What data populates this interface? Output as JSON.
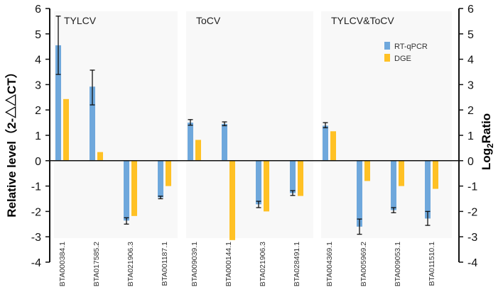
{
  "chart_data": {
    "type": "bar",
    "ylabel_left": "Relative level（2-△△CT）",
    "ylabel_right": "Log",
    "ylabel_right_sub": "2",
    "ylabel_right_tail": "Ratio",
    "ylim": [
      -4,
      6
    ],
    "yticks": [
      "-4",
      "-3",
      "-2",
      "-1",
      "0",
      "1",
      "2",
      "3",
      "4",
      "5",
      "6"
    ],
    "legend": {
      "placement": "top-right",
      "entries": [
        "RT-qPCR",
        "DGE"
      ]
    },
    "colors": {
      "RT-qPCR": "#6fa8dc",
      "DGE": "#ffc125"
    },
    "panels": [
      {
        "title": "TYLCV",
        "categories": [
          "BTA000384.1",
          "BTA017585.2",
          "BTA021906.3",
          "BTA001187.1"
        ],
        "rtqpcr": [
          4.55,
          2.92,
          -2.36,
          -1.45
        ],
        "rtqpcr_err_low": [
          3.4,
          2.2,
          -2.5,
          -1.5
        ],
        "rtqpcr_err_high": [
          5.7,
          3.57,
          -2.25,
          -1.4
        ],
        "dge": [
          2.43,
          0.34,
          -2.18,
          -1.0
        ]
      },
      {
        "title": "ToCV",
        "categories": [
          "BTA009039.1",
          "BTA000144.1",
          "BTA021906.3",
          "BTA028491.1"
        ],
        "rtqpcr": [
          1.5,
          1.45,
          -1.72,
          -1.28
        ],
        "rtqpcr_err_low": [
          1.4,
          1.38,
          -1.85,
          -1.37
        ],
        "rtqpcr_err_high": [
          1.62,
          1.53,
          -1.6,
          -1.18
        ],
        "dge": [
          0.82,
          -3.13,
          -2.0,
          -1.39
        ]
      },
      {
        "title": "TYLCV&ToCV",
        "categories": [
          "BTA004369.1",
          "BTA005969.2",
          "BTA009053.1",
          "BTA011510.1"
        ],
        "rtqpcr": [
          1.38,
          -2.6,
          -1.95,
          -2.28
        ],
        "rtqpcr_err_low": [
          1.3,
          -2.9,
          -2.05,
          -2.55
        ],
        "rtqpcr_err_high": [
          1.5,
          -2.3,
          -1.85,
          -2.0
        ],
        "dge": [
          1.16,
          -0.8,
          -1.0,
          -1.11
        ]
      }
    ]
  }
}
